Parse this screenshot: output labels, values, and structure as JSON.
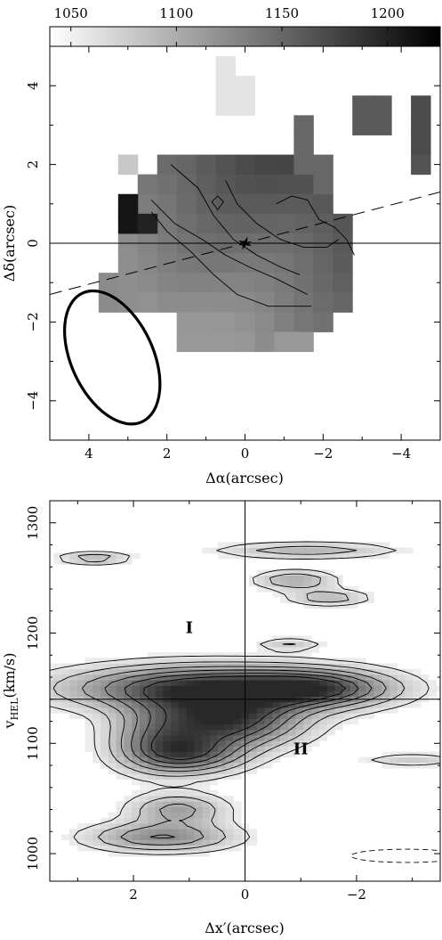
{
  "chart_data": [
    {
      "type": "heatmap",
      "panel": "velocity-field",
      "colorbar": {
        "min": 1040,
        "max": 1225,
        "ticks": [
          1050,
          1100,
          1150,
          1200
        ],
        "tick_labels": [
          "1050",
          "1100",
          "1150",
          "1200"
        ],
        "colormap": "white-to-black"
      },
      "xlabel": "Δα(arcsec)",
      "ylabel": "Δδ(arcsec)",
      "xlim": [
        5,
        -5
      ],
      "ylim": [
        -5,
        5
      ],
      "x_ticks": [
        4,
        2,
        0,
        -2,
        -4
      ],
      "x_tick_labels": [
        "4",
        "2",
        "0",
        "−2",
        "−4"
      ],
      "y_ticks": [
        -4,
        -2,
        0,
        2,
        4
      ],
      "y_tick_labels": [
        "−4",
        "−2",
        "0",
        "2",
        "4"
      ],
      "beam": {
        "center": [
          3.4,
          -2.9
        ],
        "major": 3.6,
        "minor": 2.1,
        "pa_deg": 155
      },
      "center_marker": [
        0,
        0
      ],
      "position_angle_line": {
        "slope": -0.26,
        "style": "dashed"
      },
      "crosshair": {
        "horizontal": 0
      },
      "pixels": {
        "pixel_size": 0.5,
        "cells": [
          [
            0.5,
            4.5,
            1060
          ],
          [
            0.5,
            4.0,
            1060
          ],
          [
            0.0,
            4.0,
            1060
          ],
          [
            0.5,
            3.5,
            1060
          ],
          [
            0.0,
            3.5,
            1060
          ],
          [
            -3.0,
            3.5,
            1160
          ],
          [
            -3.5,
            3.5,
            1160
          ],
          [
            -3.0,
            3.0,
            1160
          ],
          [
            -3.5,
            3.0,
            1160
          ],
          [
            -4.5,
            3.5,
            1170
          ],
          [
            -4.5,
            3.0,
            1170
          ],
          [
            -4.5,
            2.5,
            1170
          ],
          [
            -4.5,
            2.0,
            1165
          ],
          [
            -1.5,
            3.0,
            1150
          ],
          [
            -1.5,
            2.5,
            1150
          ],
          [
            -1.5,
            2.0,
            1150
          ],
          [
            -2.0,
            2.0,
            1150
          ],
          [
            -2.0,
            1.5,
            1150
          ],
          [
            3.0,
            2.0,
            1080
          ],
          [
            3.0,
            0.5,
            1210
          ],
          [
            3.0,
            1.0,
            1210
          ],
          [
            2.5,
            0.5,
            1200
          ]
        ],
        "field_base": 1145
      },
      "contours_velocity": [
        1120,
        1130,
        1140,
        1150,
        1160
      ]
    },
    {
      "type": "heatmap",
      "panel": "position-velocity",
      "xlabel": "Δx′(arcsec)",
      "ylabel": "vHEL(km/s)",
      "ylabel_base": "v",
      "ylabel_sub": "HEL",
      "ylabel_rest": "(km/s)",
      "xlim": [
        3.5,
        -3.5
      ],
      "ylim": [
        975,
        1320
      ],
      "x_ticks": [
        2,
        0,
        -2
      ],
      "x_tick_labels": [
        "2",
        "0",
        "−2"
      ],
      "y_ticks": [
        1000,
        1100,
        1200,
        1300
      ],
      "y_tick_labels": [
        "1000",
        "1100",
        "1200",
        "1300"
      ],
      "crosshair": {
        "vertical": 0,
        "horizontal": 1140
      },
      "annotations": [
        {
          "text": "I",
          "x": 1.0,
          "y": 1200
        },
        {
          "text": "II",
          "x": -1.0,
          "y": 1090
        }
      ],
      "components": [
        {
          "x": 0.6,
          "y": 1150,
          "sx": 1.7,
          "sy": 14,
          "amp": 1.0
        },
        {
          "x": 0.3,
          "y": 1120,
          "sx": 0.9,
          "sy": 16,
          "amp": 0.9
        },
        {
          "x": 1.0,
          "y": 1090,
          "sx": 0.7,
          "sy": 12,
          "amp": 0.65
        },
        {
          "x": 1.6,
          "y": 1105,
          "sx": 0.6,
          "sy": 20,
          "amp": 0.45
        },
        {
          "x": -1.3,
          "y": 1150,
          "sx": 0.9,
          "sy": 11,
          "amp": 0.55
        },
        {
          "x": 1.2,
          "y": 1040,
          "sx": 0.6,
          "sy": 10,
          "amp": 0.45
        },
        {
          "x": 1.5,
          "y": 1015,
          "sx": 0.9,
          "sy": 9,
          "amp": 0.55
        },
        {
          "x": 2.7,
          "y": 1268,
          "sx": 0.45,
          "sy": 4,
          "amp": 0.35
        },
        {
          "x": -1.1,
          "y": 1275,
          "sx": 1.1,
          "sy": 5,
          "amp": 0.35
        },
        {
          "x": -0.9,
          "y": 1248,
          "sx": 0.5,
          "sy": 6,
          "amp": 0.4
        },
        {
          "x": -1.5,
          "y": 1232,
          "sx": 0.5,
          "sy": 5,
          "amp": 0.35
        },
        {
          "x": -0.8,
          "y": 1190,
          "sx": 0.4,
          "sy": 4,
          "amp": 0.25
        },
        {
          "x": -3.0,
          "y": 1085,
          "sx": 0.6,
          "sy": 4,
          "amp": 0.25
        }
      ],
      "contour_levels": [
        0.12,
        0.25,
        0.4,
        0.55,
        0.7,
        0.85
      ],
      "negative_contour": {
        "x": -2.9,
        "y": 998,
        "sx": 1.0,
        "sy": 6,
        "style": "dashed"
      }
    }
  ]
}
